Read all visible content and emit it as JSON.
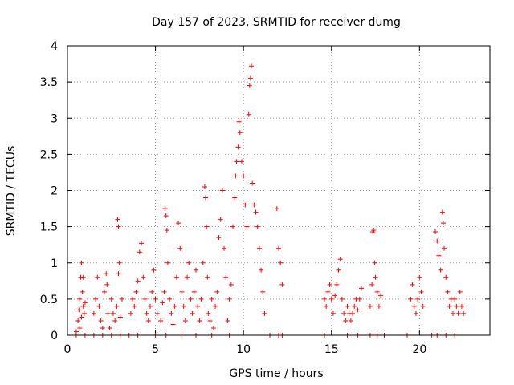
{
  "chart_data": {
    "type": "scatter",
    "title": "Day 157 of 2023, SRMTID for receiver dumg",
    "xlabel": "GPS time / hours",
    "ylabel": "SRMTID / TECUs",
    "xlim": [
      0,
      24
    ],
    "ylim": [
      0,
      4
    ],
    "xticks": [
      0,
      5,
      10,
      15,
      20
    ],
    "xtick_labels": [
      "0",
      "5",
      "10",
      "15",
      "20"
    ],
    "yticks": [
      0,
      0.5,
      1,
      1.5,
      2,
      2.5,
      3,
      3.5,
      4
    ],
    "ytick_labels": [
      "0",
      "0.5",
      "1",
      "1.5",
      "2",
      "2.5",
      "3",
      "3.5",
      "4"
    ],
    "grid": true,
    "marker": "+",
    "series": [
      {
        "name": "SRMTID",
        "color": "#ff0000",
        "points": [
          [
            0.5,
            0.05
          ],
          [
            0.6,
            0.2
          ],
          [
            0.65,
            0.35
          ],
          [
            0.7,
            0.5
          ],
          [
            0.75,
            0.8
          ],
          [
            0.8,
            1.0
          ],
          [
            0.85,
            0.6
          ],
          [
            0.9,
            0.4
          ],
          [
            0.95,
            0.3
          ],
          [
            0.7,
            0.1
          ],
          [
            0.8,
            0.25
          ],
          [
            0.9,
            0.8
          ],
          [
            1.0,
            0.45
          ],
          [
            1.5,
            0.3
          ],
          [
            1.6,
            0.5
          ],
          [
            1.7,
            0.8
          ],
          [
            1.8,
            0.4
          ],
          [
            1.9,
            0.2
          ],
          [
            2.0,
            0.1
          ],
          [
            2.1,
            0.6
          ],
          [
            2.2,
            0.85
          ],
          [
            2.25,
            0.7
          ],
          [
            2.3,
            0.3
          ],
          [
            2.4,
            0.1
          ],
          [
            2.5,
            0.5
          ],
          [
            2.6,
            0.3
          ],
          [
            2.7,
            0.2
          ],
          [
            2.8,
            0.4
          ],
          [
            2.9,
            0.85
          ],
          [
            2.85,
            1.6
          ],
          [
            2.9,
            1.5
          ],
          [
            2.95,
            1.0
          ],
          [
            3.0,
            0.25
          ],
          [
            3.1,
            0.5
          ],
          [
            3.6,
            0.3
          ],
          [
            3.7,
            0.5
          ],
          [
            3.8,
            0.4
          ],
          [
            3.9,
            0.6
          ],
          [
            4.0,
            0.75
          ],
          [
            4.1,
            1.15
          ],
          [
            4.2,
            1.27
          ],
          [
            4.3,
            0.8
          ],
          [
            4.4,
            0.5
          ],
          [
            4.5,
            0.3
          ],
          [
            4.6,
            0.2
          ],
          [
            4.7,
            0.4
          ],
          [
            4.8,
            0.6
          ],
          [
            4.9,
            0.9
          ],
          [
            5.0,
            0.5
          ],
          [
            5.1,
            0.3
          ],
          [
            5.3,
            0.2
          ],
          [
            5.4,
            0.45
          ],
          [
            5.5,
            0.6
          ],
          [
            5.55,
            1.75
          ],
          [
            5.6,
            1.65
          ],
          [
            5.65,
            1.45
          ],
          [
            5.7,
            1.0
          ],
          [
            5.8,
            0.5
          ],
          [
            5.9,
            0.3
          ],
          [
            6.0,
            0.15
          ],
          [
            6.1,
            0.4
          ],
          [
            6.2,
            0.8
          ],
          [
            6.3,
            1.55
          ],
          [
            6.4,
            1.2
          ],
          [
            6.5,
            0.6
          ],
          [
            6.6,
            0.4
          ],
          [
            6.7,
            0.2
          ],
          [
            6.8,
            0.8
          ],
          [
            6.9,
            1.0
          ],
          [
            7.0,
            0.5
          ],
          [
            7.1,
            0.3
          ],
          [
            7.2,
            0.6
          ],
          [
            7.3,
            0.9
          ],
          [
            7.4,
            0.4
          ],
          [
            7.5,
            0.2
          ],
          [
            7.6,
            0.5
          ],
          [
            7.7,
            1.0
          ],
          [
            7.8,
            2.05
          ],
          [
            7.85,
            1.9
          ],
          [
            7.9,
            1.5
          ],
          [
            7.95,
            0.8
          ],
          [
            8.0,
            0.3
          ],
          [
            8.1,
            0.2
          ],
          [
            8.2,
            0.5
          ],
          [
            8.3,
            0.1
          ],
          [
            8.4,
            0.4
          ],
          [
            8.5,
            0.6
          ],
          [
            8.6,
            1.35
          ],
          [
            8.7,
            1.6
          ],
          [
            8.8,
            2.0
          ],
          [
            8.9,
            1.2
          ],
          [
            9.0,
            0.8
          ],
          [
            9.1,
            0.2
          ],
          [
            9.2,
            0.5
          ],
          [
            9.3,
            0.7
          ],
          [
            9.4,
            1.5
          ],
          [
            9.5,
            1.9
          ],
          [
            9.55,
            2.2
          ],
          [
            9.6,
            2.4
          ],
          [
            9.7,
            2.6
          ],
          [
            9.75,
            2.95
          ],
          [
            9.8,
            2.8
          ],
          [
            9.9,
            2.4
          ],
          [
            10.0,
            2.2
          ],
          [
            10.1,
            1.8
          ],
          [
            10.2,
            1.5
          ],
          [
            10.3,
            3.05
          ],
          [
            10.35,
            3.45
          ],
          [
            10.4,
            3.55
          ],
          [
            10.45,
            3.72
          ],
          [
            10.5,
            2.1
          ],
          [
            10.6,
            1.8
          ],
          [
            10.7,
            1.7
          ],
          [
            10.8,
            1.5
          ],
          [
            10.9,
            1.2
          ],
          [
            11.0,
            0.9
          ],
          [
            11.1,
            0.6
          ],
          [
            11.2,
            0.3
          ],
          [
            11.9,
            1.75
          ],
          [
            12.0,
            1.2
          ],
          [
            12.1,
            1.0
          ],
          [
            12.2,
            0.7
          ],
          [
            14.6,
            0.5
          ],
          [
            14.7,
            0.4
          ],
          [
            14.8,
            0.6
          ],
          [
            14.9,
            0.7
          ],
          [
            15.0,
            0.5
          ],
          [
            15.1,
            0.3
          ],
          [
            15.2,
            0.55
          ],
          [
            15.3,
            0.7
          ],
          [
            15.4,
            0.9
          ],
          [
            15.5,
            1.05
          ],
          [
            15.6,
            0.5
          ],
          [
            15.7,
            0.3
          ],
          [
            15.8,
            0.2
          ],
          [
            15.9,
            0.4
          ],
          [
            16.0,
            0.3
          ],
          [
            16.1,
            0.2
          ],
          [
            16.2,
            0.3
          ],
          [
            16.3,
            0.4
          ],
          [
            16.4,
            0.5
          ],
          [
            16.5,
            0.35
          ],
          [
            16.6,
            0.5
          ],
          [
            16.7,
            0.65
          ],
          [
            17.2,
            0.4
          ],
          [
            17.3,
            0.7
          ],
          [
            17.35,
            1.43
          ],
          [
            17.4,
            1.45
          ],
          [
            17.45,
            1.0
          ],
          [
            17.5,
            0.8
          ],
          [
            17.6,
            0.6
          ],
          [
            17.7,
            0.4
          ],
          [
            17.8,
            0.55
          ],
          [
            19.5,
            0.5
          ],
          [
            19.6,
            0.7
          ],
          [
            19.7,
            0.4
          ],
          [
            19.8,
            0.3
          ],
          [
            19.9,
            0.5
          ],
          [
            20.0,
            0.8
          ],
          [
            20.1,
            0.6
          ],
          [
            20.2,
            0.4
          ],
          [
            20.9,
            1.43
          ],
          [
            21.0,
            1.3
          ],
          [
            21.1,
            1.1
          ],
          [
            21.2,
            0.9
          ],
          [
            21.3,
            1.7
          ],
          [
            21.35,
            1.55
          ],
          [
            21.4,
            1.2
          ],
          [
            21.5,
            0.8
          ],
          [
            21.6,
            0.6
          ],
          [
            21.7,
            0.4
          ],
          [
            21.8,
            0.5
          ],
          [
            21.9,
            0.3
          ],
          [
            22.0,
            0.5
          ],
          [
            22.1,
            0.4
          ],
          [
            22.2,
            0.3
          ],
          [
            22.3,
            0.6
          ],
          [
            22.4,
            0.4
          ],
          [
            22.5,
            0.3
          ],
          [
            0.5,
            0
          ],
          [
            1.0,
            0
          ],
          [
            1.5,
            0
          ],
          [
            2.0,
            0
          ],
          [
            2.5,
            0
          ],
          [
            3.0,
            0
          ],
          [
            3.5,
            0
          ],
          [
            4.0,
            0
          ],
          [
            5.0,
            0
          ],
          [
            5.6,
            0
          ],
          [
            6.5,
            0
          ],
          [
            7.3,
            0
          ],
          [
            8.2,
            0
          ],
          [
            9.2,
            0
          ],
          [
            11.5,
            0
          ],
          [
            12.0,
            0
          ],
          [
            12.2,
            0
          ],
          [
            14.6,
            0
          ],
          [
            15.9,
            0
          ],
          [
            16.5,
            0
          ],
          [
            17.2,
            0
          ],
          [
            17.6,
            0
          ],
          [
            18.0,
            0
          ],
          [
            19.3,
            0
          ],
          [
            20.7,
            0
          ],
          [
            21.0,
            0
          ],
          [
            21.5,
            0
          ],
          [
            22.0,
            0
          ]
        ]
      }
    ]
  }
}
